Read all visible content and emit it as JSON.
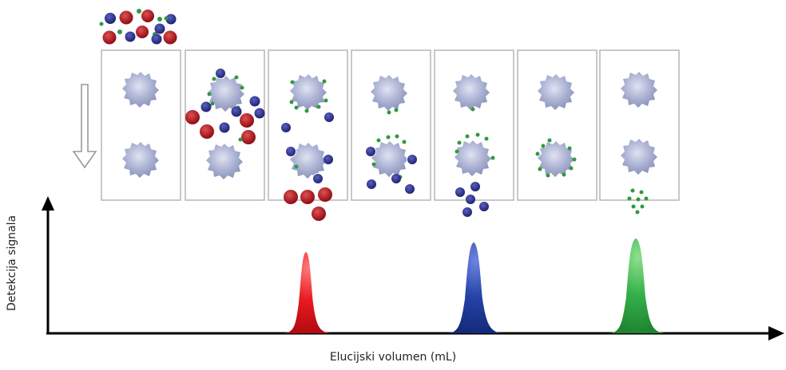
{
  "figure": {
    "y_axis_label": "Detekcija signala",
    "x_axis_label": "Elucijski volumen (mL)"
  },
  "colors": {
    "large_particle": "#b0121c",
    "medium_particle": "#2b2f8a",
    "small_particle": "#2e9a3e",
    "bead": "#9ea6c8",
    "frame": "#b5b5b5",
    "peak_large": "#e01b24",
    "peak_medium": "#1f3fa6",
    "peak_small": "#2ca84a"
  },
  "column_stages": 7,
  "peaks": [
    {
      "particle": "large",
      "order": 1
    },
    {
      "particle": "medium",
      "order": 2
    },
    {
      "particle": "small",
      "order": 3
    }
  ]
}
